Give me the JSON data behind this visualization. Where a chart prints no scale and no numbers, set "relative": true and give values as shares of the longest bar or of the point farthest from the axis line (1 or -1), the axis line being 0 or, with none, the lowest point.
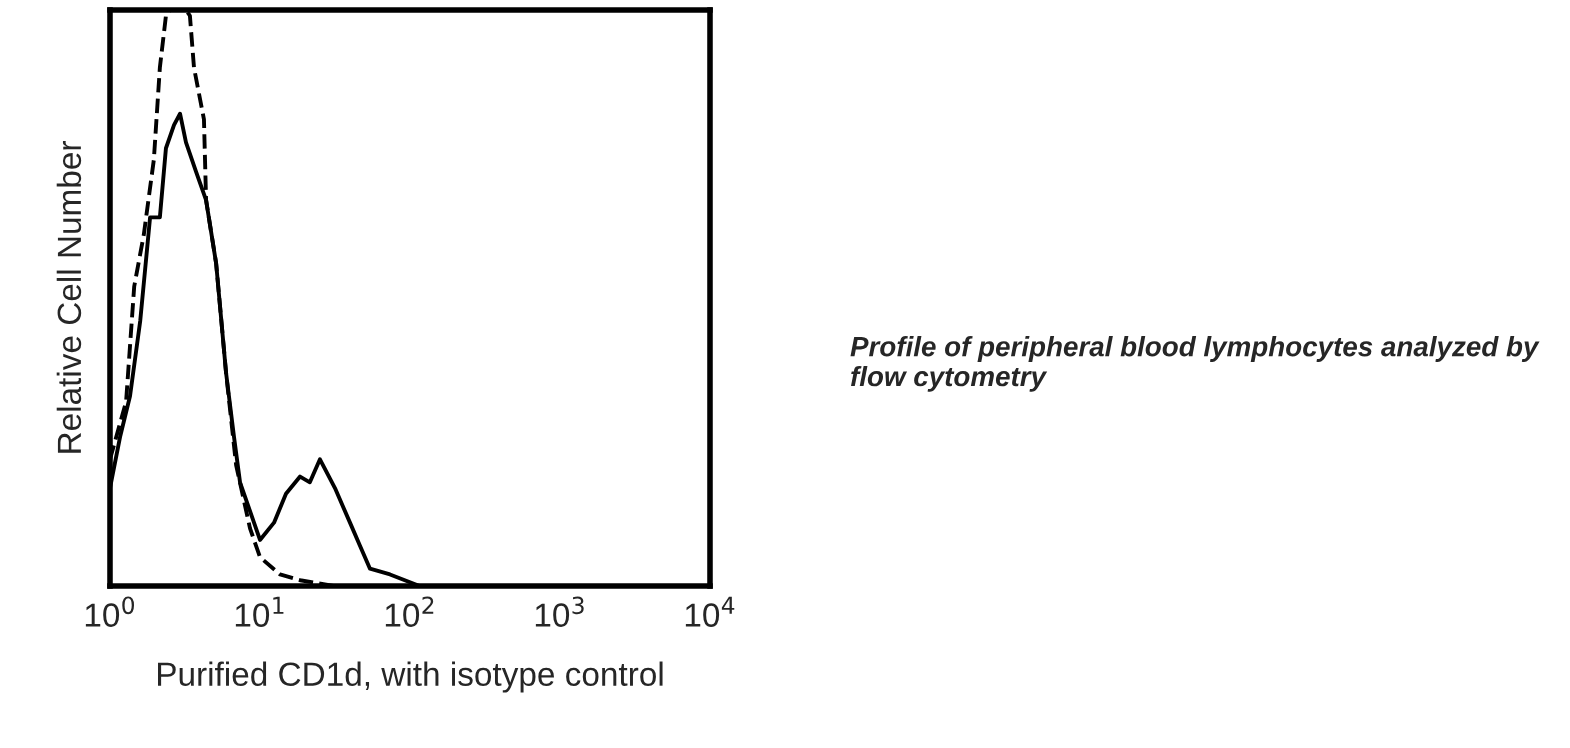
{
  "chart_data": {
    "type": "line",
    "relative": true,
    "log": "x",
    "xlabel": "Purified CD1d, with isotype control",
    "ylabel": "Relative Cell Number",
    "xlim": [
      1,
      10000
    ],
    "xticks": [
      {
        "value": 1,
        "label": "10$^{0}$"
      },
      {
        "value": 10,
        "label": "10$^{1}$"
      },
      {
        "value": 100,
        "label": "10$^{2}$"
      },
      {
        "value": 1000,
        "label": "10$^{3}$"
      },
      {
        "value": 10000,
        "label": "10$^{4}$"
      }
    ],
    "grid": false,
    "legend": false,
    "marker": "none",
    "annotations": [
      "Profile of peripheral blood lymphocytes analyzed by flow cytometry"
    ],
    "series": [
      {
        "color": "#000000",
        "line_style": "solid",
        "x": [
          1,
          1.17,
          1.36,
          1.59,
          1.85,
          2.15,
          2.36,
          2.67,
          2.93,
          3.21,
          3.74,
          4.37,
          5.1,
          5.94,
          6.7,
          7.36,
          8.58,
          10,
          12.4,
          14.9,
          18.5,
          21.5,
          25.1,
          31.6,
          39.8,
          46.4,
          54.1,
          73.6,
          116,
          215,
          1000,
          10000
        ],
        "values": [
          0.17,
          0.26,
          0.33,
          0.46,
          0.64,
          0.64,
          0.76,
          0.8,
          0.82,
          0.77,
          0.72,
          0.67,
          0.56,
          0.37,
          0.26,
          0.18,
          0.13,
          0.08,
          0.11,
          0.16,
          0.19,
          0.18,
          0.22,
          0.17,
          0.11,
          0.07,
          0.03,
          0.02,
          0.0,
          0.0,
          0.0,
          0.0
        ]
      },
      {
        "color": "#000000",
        "line_style": "dashed",
        "x": [
          1,
          1.28,
          1.45,
          1.68,
          1.96,
          2.15,
          2.36,
          2.51,
          3.21,
          3.41,
          3.63,
          4.23,
          4.37,
          5.1,
          5.94,
          6.93,
          8.58,
          10,
          13.6,
          18.5,
          31.1,
          63.1,
          215,
          1000,
          10000
        ],
        "values": [
          0.22,
          0.32,
          0.52,
          0.61,
          0.74,
          0.9,
          0.99,
          1.0,
          1.0,
          0.99,
          0.9,
          0.81,
          0.67,
          0.56,
          0.37,
          0.21,
          0.1,
          0.05,
          0.02,
          0.01,
          0.0,
          0.0,
          0.0,
          0.0,
          0.0
        ]
      }
    ]
  }
}
